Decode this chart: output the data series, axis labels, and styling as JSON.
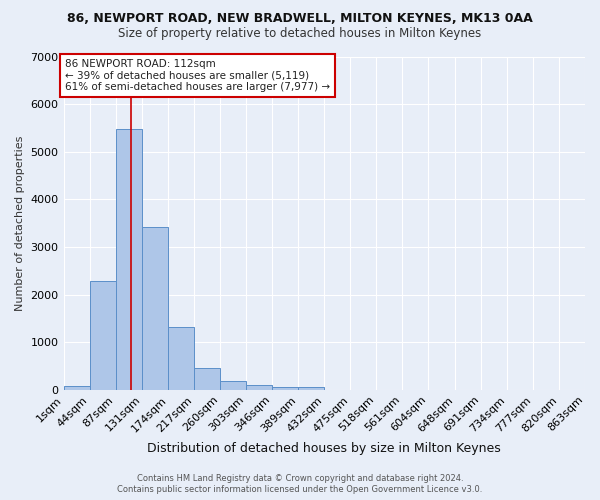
{
  "title": "86, NEWPORT ROAD, NEW BRADWELL, MILTON KEYNES, MK13 0AA",
  "subtitle": "Size of property relative to detached houses in Milton Keynes",
  "xlabel": "Distribution of detached houses by size in Milton Keynes",
  "ylabel": "Number of detached properties",
  "footer_line1": "Contains HM Land Registry data © Crown copyright and database right 2024.",
  "footer_line2": "Contains public sector information licensed under the Open Government Licence v3.0.",
  "bar_edges": [
    1,
    44,
    87,
    131,
    174,
    217,
    260,
    303,
    346,
    389,
    432,
    475,
    518,
    561,
    604,
    648,
    691,
    734,
    777,
    820,
    863
  ],
  "bar_heights": [
    75,
    2280,
    5480,
    3420,
    1310,
    450,
    185,
    100,
    65,
    65,
    0,
    0,
    0,
    0,
    0,
    0,
    0,
    0,
    0,
    0
  ],
  "bar_color": "#aec6e8",
  "bar_edge_color": "#5b8fc9",
  "background_color": "#e8eef8",
  "grid_color": "#ffffff",
  "vline_x": 112,
  "vline_color": "#cc0000",
  "annotation_text": "86 NEWPORT ROAD: 112sqm\n← 39% of detached houses are smaller (5,119)\n61% of semi-detached houses are larger (7,977) →",
  "annotation_box_color": "#ffffff",
  "annotation_border_color": "#cc0000",
  "ylim": [
    0,
    7000
  ],
  "tick_labels": [
    "1sqm",
    "44sqm",
    "87sqm",
    "131sqm",
    "174sqm",
    "217sqm",
    "260sqm",
    "303sqm",
    "346sqm",
    "389sqm",
    "432sqm",
    "475sqm",
    "518sqm",
    "561sqm",
    "604sqm",
    "648sqm",
    "691sqm",
    "734sqm",
    "777sqm",
    "820sqm",
    "863sqm"
  ]
}
